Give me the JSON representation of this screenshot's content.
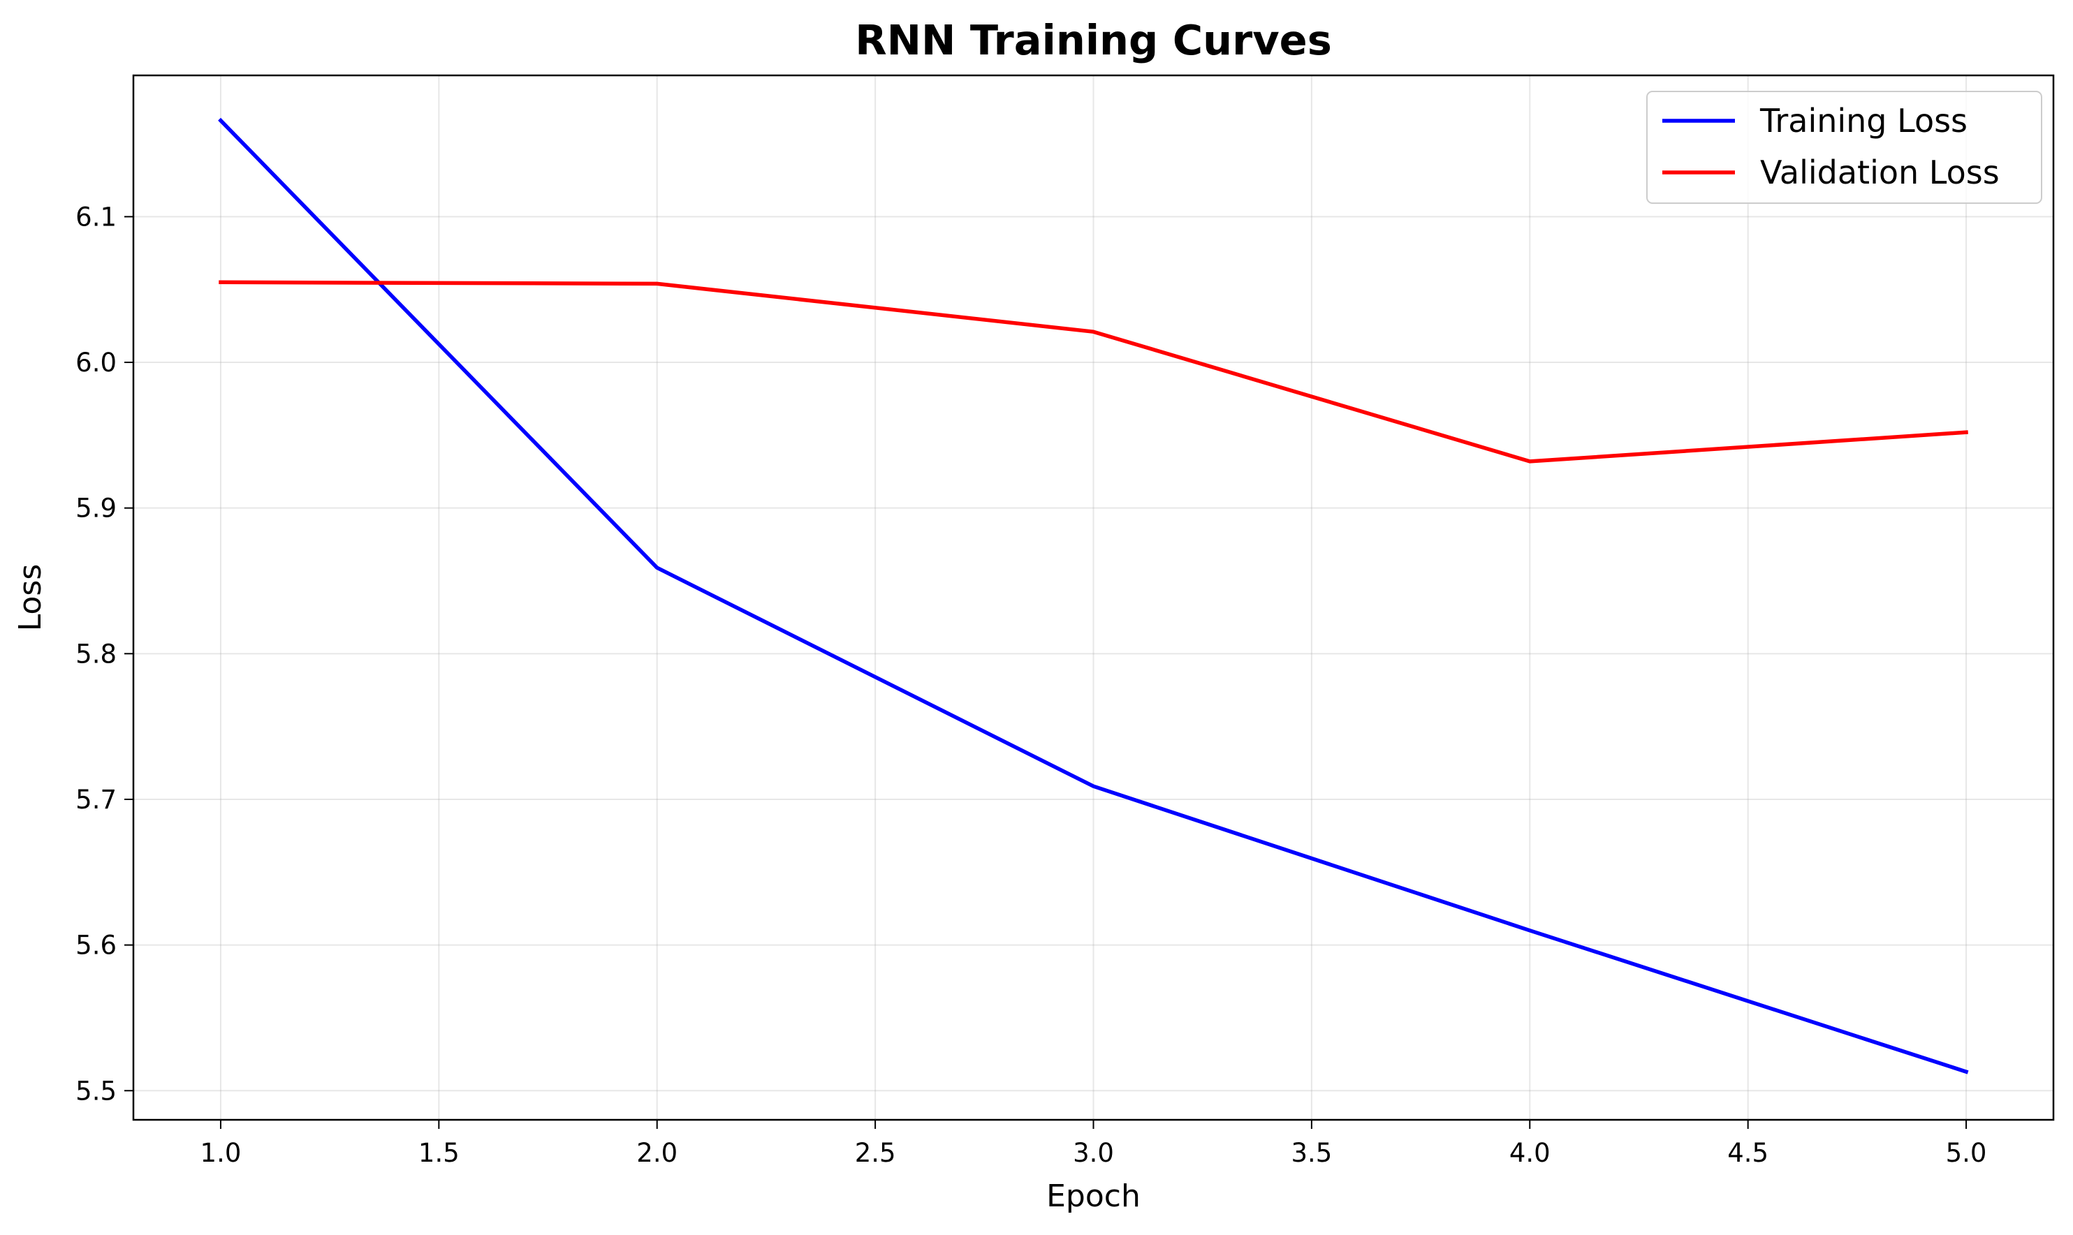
{
  "chart_data": {
    "type": "line",
    "title": "RNN Training Curves",
    "xlabel": "Epoch",
    "ylabel": "Loss",
    "xlim": [
      0.8,
      5.2
    ],
    "ylim": [
      5.48,
      6.197
    ],
    "x": [
      1,
      2,
      3,
      4,
      5
    ],
    "x_ticks": [
      1.0,
      1.5,
      2.0,
      2.5,
      3.0,
      3.5,
      4.0,
      4.5,
      5.0
    ],
    "x_tick_labels": [
      "1.0",
      "1.5",
      "2.0",
      "2.5",
      "3.0",
      "3.5",
      "4.0",
      "4.5",
      "5.0"
    ],
    "y_ticks": [
      5.5,
      5.6,
      5.7,
      5.8,
      5.9,
      6.0,
      6.1
    ],
    "y_tick_labels": [
      "5.5",
      "5.6",
      "5.7",
      "5.8",
      "5.9",
      "6.0",
      "6.1"
    ],
    "grid": true,
    "legend_position": "top-right",
    "series": [
      {
        "name": "Training Loss",
        "color": "#0000ff",
        "values": [
          6.166,
          5.859,
          5.709,
          5.61,
          5.513
        ]
      },
      {
        "name": "Validation Loss",
        "color": "#ff0000",
        "values": [
          6.055,
          6.054,
          6.021,
          5.932,
          5.952
        ]
      }
    ]
  }
}
